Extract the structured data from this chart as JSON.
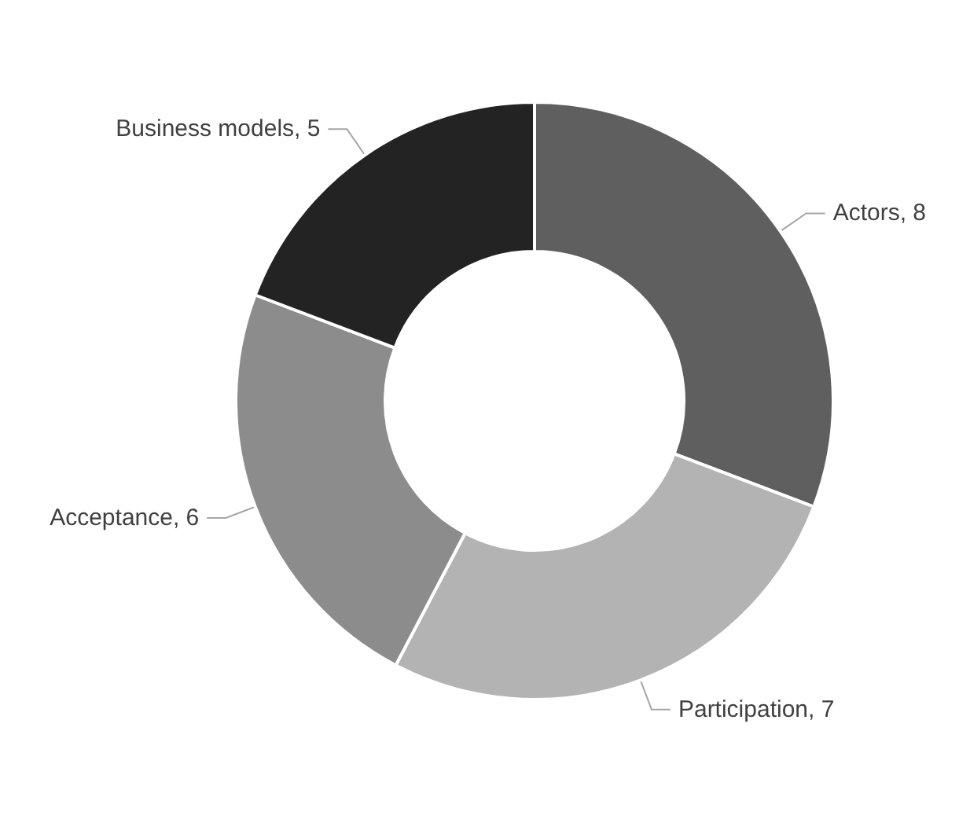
{
  "chart_data": {
    "type": "donut",
    "categories": [
      "Actors",
      "Participation",
      "Acceptance",
      "Business models"
    ],
    "values": [
      8,
      7,
      6,
      5
    ],
    "value_labels": [
      ", 8",
      ", 7",
      ", 6",
      ", 5"
    ],
    "colors": [
      "#5f5f5f",
      "#b3b3b3",
      "#8c8c8c",
      "#232323"
    ],
    "legend": false
  }
}
